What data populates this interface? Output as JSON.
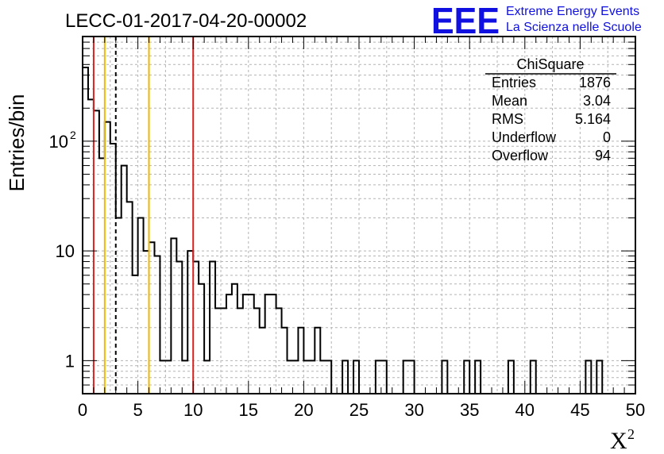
{
  "chart_data": {
    "type": "bar",
    "title": "LECC-01-2017-04-20-00002",
    "xlabel": "X",
    "xlabel_superscript": "2",
    "ylabel": "Entries/bin",
    "xlim": [
      0,
      50
    ],
    "ylim": [
      0.5,
      900
    ],
    "yscale": "log",
    "grid": true,
    "bin_width": 0.5,
    "x_ticks": [
      "0",
      "5",
      "10",
      "15",
      "20",
      "25",
      "30",
      "35",
      "40",
      "45",
      "50"
    ],
    "y_ticks": [
      {
        "value": 1,
        "label": "1"
      },
      {
        "value": 10,
        "label": "10"
      },
      {
        "value": 100,
        "label": "10",
        "exponent": "2"
      }
    ],
    "bin_edges_start": 0,
    "values": [
      470,
      240,
      190,
      70,
      150,
      95,
      20,
      60,
      28,
      6,
      20,
      10,
      12,
      9,
      1,
      1,
      13,
      8,
      1,
      10,
      8,
      5,
      1,
      8,
      3,
      3,
      4,
      5,
      3,
      4,
      4,
      3,
      2,
      4,
      4,
      3,
      2,
      1,
      1,
      2,
      1,
      1,
      2,
      1,
      1,
      0,
      0,
      1,
      0,
      1,
      0,
      0,
      0,
      1,
      1,
      0,
      0,
      0,
      1,
      1,
      0,
      0,
      0,
      0,
      0,
      1,
      0,
      0,
      0,
      1,
      0,
      1,
      0,
      0,
      0,
      0,
      0,
      1,
      0,
      0,
      0,
      1,
      0,
      0,
      0,
      0,
      0,
      0,
      0,
      0,
      0,
      1,
      0,
      1,
      0,
      0
    ]
  },
  "vlines": [
    {
      "x": 1,
      "color": "#e02020",
      "style": "solid"
    },
    {
      "x": 2,
      "color": "#f0b800",
      "style": "solid"
    },
    {
      "x": 3,
      "color": "#000000",
      "style": "dashed"
    },
    {
      "x": 6,
      "color": "#f0b800",
      "style": "solid"
    },
    {
      "x": 10,
      "color": "#e02020",
      "style": "solid"
    }
  ],
  "stats_box": {
    "title": "ChiSquare",
    "rows": [
      {
        "label": "Entries",
        "value": "1876"
      },
      {
        "label": "Mean",
        "value": "3.04"
      },
      {
        "label": "RMS",
        "value": "5.164"
      },
      {
        "label": "Underflow",
        "value": "0"
      },
      {
        "label": "Overflow",
        "value": "94"
      }
    ]
  },
  "logo": {
    "mark": "EEE",
    "line1": "Extreme Energy Events",
    "line2": "La Scienza nelle Scuole",
    "color": "#1010e0"
  }
}
